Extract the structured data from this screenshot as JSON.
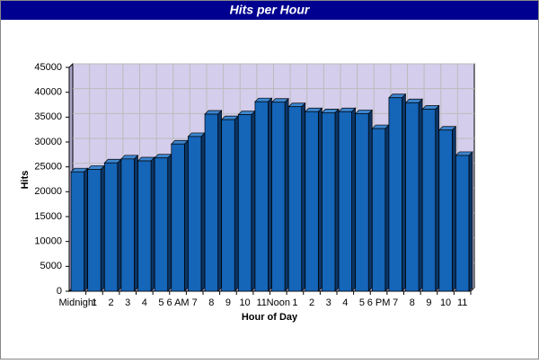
{
  "chart_data": {
    "type": "bar",
    "title": "Hits per Hour",
    "x_label": "Hour of Day",
    "y_label": "Hits",
    "categories": [
      "Midnight",
      "1",
      "2",
      "3",
      "4",
      "5",
      "6 AM",
      "7",
      "8",
      "9",
      "10",
      "11",
      "Noon",
      "1",
      "2",
      "3",
      "4",
      "5",
      "6 PM",
      "7",
      "8",
      "9",
      "10",
      "11"
    ],
    "values": [
      24000,
      24500,
      25800,
      26600,
      26200,
      26800,
      29600,
      31100,
      35600,
      34500,
      35500,
      38100,
      38000,
      37100,
      36100,
      35900,
      36100,
      35700,
      32700,
      38900,
      37900,
      36600,
      32400,
      27300
    ],
    "color": "#1565b8",
    "ylim": [
      0,
      45000
    ],
    "yticks": [
      0,
      5000,
      10000,
      15000,
      20000,
      25000,
      30000,
      35000,
      40000,
      45000
    ],
    "grid": true
  }
}
